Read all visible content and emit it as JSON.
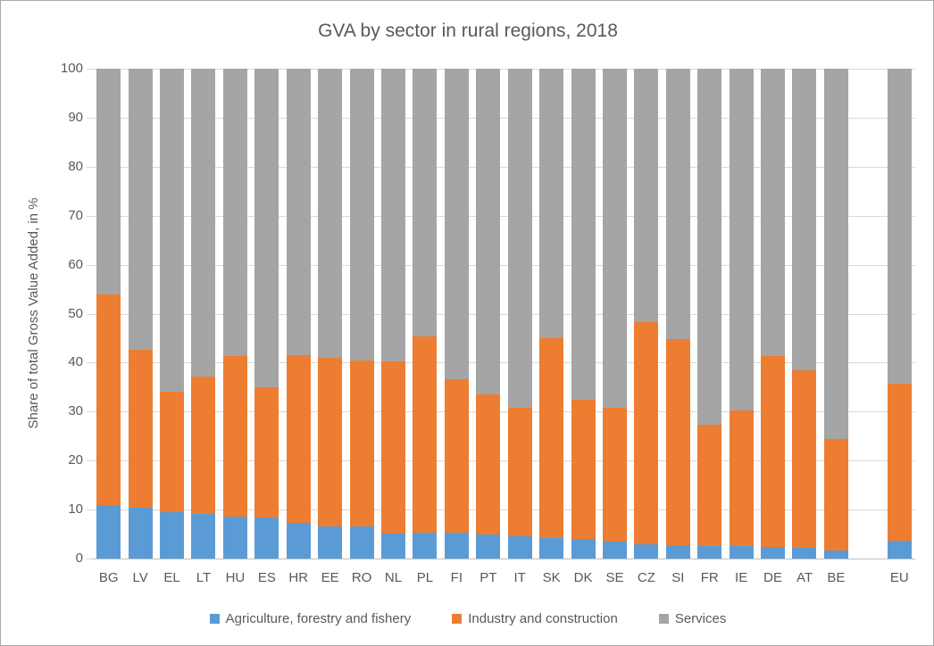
{
  "title": "GVA by sector in rural regions, 2018",
  "colors": {
    "agriculture": "#5B9BD5",
    "industry": "#ED7D31",
    "services": "#A5A5A5",
    "text": "#595959",
    "gridline": "#D9D9D9",
    "axis_line": "#BFBFBF",
    "frame_border": "#ABABAB",
    "background": "#FFFFFF"
  },
  "chart_data": {
    "type": "bar",
    "stacked": true,
    "title": "GVA by sector in rural regions, 2018",
    "xlabel": "",
    "ylabel": "Share of total Gross Value Added, in %",
    "ylim": [
      0,
      100
    ],
    "ytick_step": 10,
    "grid": true,
    "legend_position": "bottom",
    "categories": [
      "BG",
      "LV",
      "EL",
      "LT",
      "HU",
      "ES",
      "HR",
      "EE",
      "RO",
      "NL",
      "PL",
      "FI",
      "PT",
      "IT",
      "SK",
      "DK",
      "SE",
      "CZ",
      "SI",
      "FR",
      "IE",
      "DE",
      "AT",
      "BE",
      "EU"
    ],
    "separator_before": "EU",
    "series": [
      {
        "name": "Agriculture, forestry and fishery",
        "color": "#5B9BD5",
        "values": [
          11.0,
          10.4,
          9.4,
          9.1,
          8.6,
          8.3,
          7.2,
          6.5,
          6.5,
          5.1,
          5.2,
          5.2,
          4.9,
          4.6,
          4.2,
          4.1,
          3.4,
          3.0,
          2.8,
          2.5,
          2.5,
          2.4,
          2.2,
          1.6,
          3.7
        ]
      },
      {
        "name": "Industry and construction",
        "color": "#ED7D31",
        "values": [
          43.0,
          32.2,
          24.6,
          28.0,
          32.7,
          26.6,
          34.3,
          34.5,
          34.0,
          35.1,
          40.1,
          31.5,
          28.7,
          26.2,
          40.8,
          28.4,
          27.3,
          45.2,
          42.0,
          24.9,
          27.8,
          38.9,
          36.2,
          22.8,
          32.0
        ]
      },
      {
        "name": "Services",
        "color": "#A5A5A5",
        "values": [
          46.0,
          57.4,
          66.0,
          62.9,
          58.7,
          65.1,
          58.5,
          59.0,
          59.5,
          59.8,
          54.7,
          63.3,
          66.4,
          69.2,
          55.0,
          67.5,
          69.3,
          51.8,
          55.2,
          72.6,
          69.7,
          58.7,
          61.6,
          75.6,
          64.3
        ]
      }
    ]
  }
}
